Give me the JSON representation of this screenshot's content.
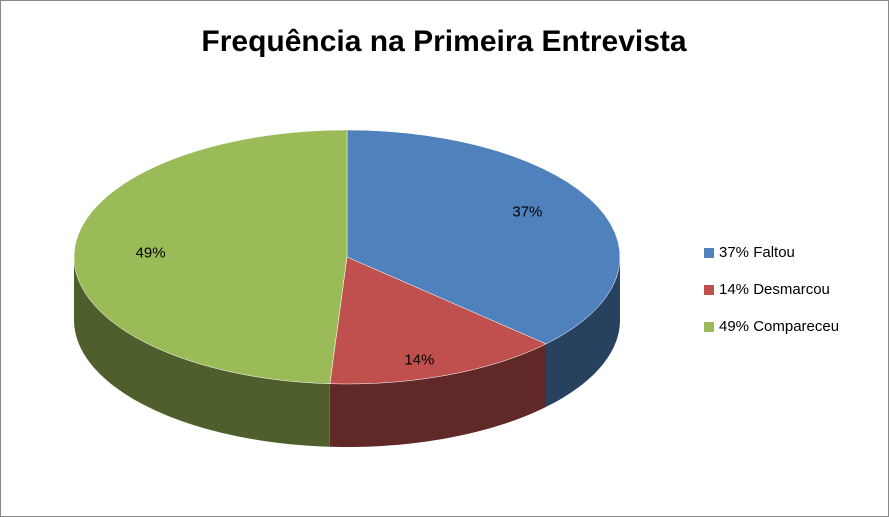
{
  "chart_data": {
    "type": "pie",
    "title": "Frequência na Primeira Entrevista",
    "categories": [
      "37% Faltou",
      "14% Desmarcou",
      "49% Compareceu"
    ],
    "values": [
      37,
      14,
      49
    ],
    "value_labels": [
      "37%",
      "14%",
      "49%"
    ],
    "colors": [
      "#4f81bd",
      "#c0504d",
      "#9bbb59"
    ],
    "legend": "right"
  }
}
